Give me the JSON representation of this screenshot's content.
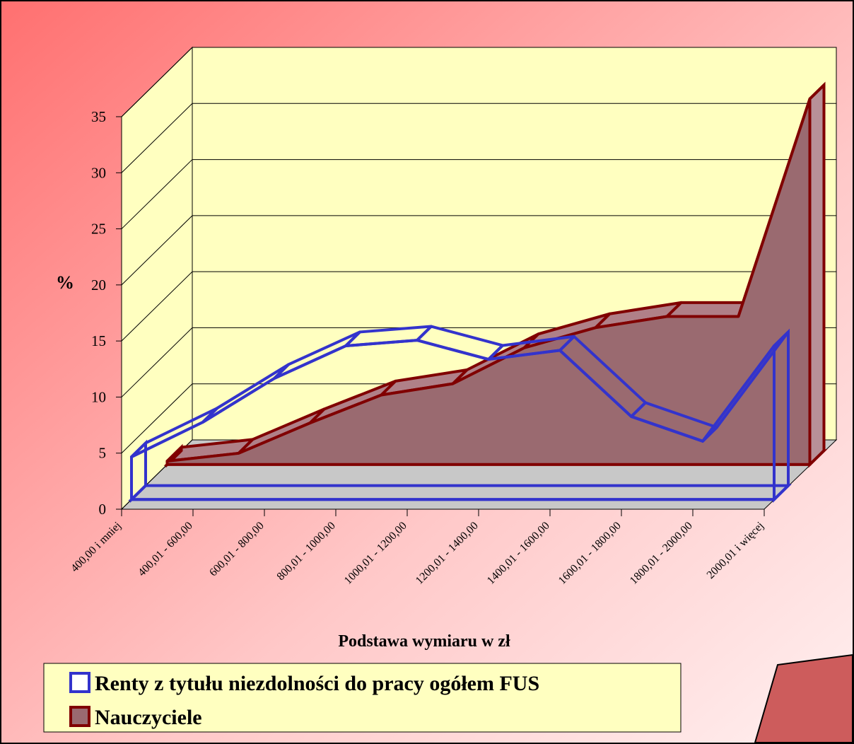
{
  "chart_data": {
    "type": "area",
    "y_label": "%",
    "x_label": "Podstawa wymiaru w zł",
    "categories": [
      "400,00 i mniej",
      "400,01 - 600,00",
      "600,01 - 800,00",
      "800,01 - 1000,00",
      "1000,01 - 1200,00",
      "1200,01 - 1400,00",
      "1400,01 - 1600,00",
      "1600,01 - 1800,00",
      "1800,01 - 2000,00",
      "2000,01 i więcej"
    ],
    "series": [
      {
        "name": "Renty z tytułu niezdolności do pracy ogółem  FUS",
        "color": "#3333cc",
        "values": [
          3.8,
          6.9,
          10.8,
          13.7,
          14.2,
          12.5,
          13.3,
          7.4,
          5.2,
          13.7
        ]
      },
      {
        "name": "Nauczyciele",
        "color": "#800000",
        "values": [
          0.3,
          1.0,
          3.7,
          6.2,
          7.2,
          10.4,
          12.2,
          13.2,
          13.2,
          32.6
        ]
      }
    ],
    "ylim": [
      0,
      35
    ],
    "yticks": [
      0,
      5,
      10,
      15,
      20,
      25,
      30,
      35
    ],
    "grid": true
  }
}
